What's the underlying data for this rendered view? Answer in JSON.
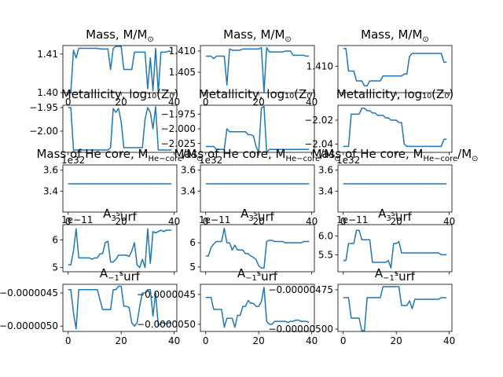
{
  "figure": {
    "line_color": "#1f77b4",
    "x_ticks": [
      0,
      20,
      40
    ],
    "x_tick_labels": [
      "0",
      "20",
      "40"
    ]
  },
  "chart_data": [
    {
      "type": "line",
      "title": "Mass, M/M_⊙",
      "xlim": [
        -2,
        41
      ],
      "ylim": [
        1.4,
        1.4122
      ],
      "y_ticks": [
        1.4,
        1.41
      ],
      "y_tick_labels": [
        "1.40",
        "1.41"
      ],
      "offset_label": "",
      "x": [
        0,
        1,
        2,
        3,
        4,
        5,
        6,
        7,
        8,
        9,
        10,
        11,
        12,
        13,
        14,
        15,
        16,
        17,
        18,
        19,
        20,
        21,
        22,
        23,
        24,
        25,
        26,
        27,
        28,
        29,
        30,
        31,
        32,
        33,
        34,
        35,
        36,
        37,
        38,
        39
      ],
      "y": [
        1.4,
        1.4,
        1.411,
        1.409,
        1.4115,
        1.4115,
        1.4115,
        1.4115,
        1.4115,
        1.4115,
        1.4115,
        1.4115,
        1.4113,
        1.4113,
        1.4113,
        1.4113,
        1.406,
        1.4115,
        1.412,
        1.412,
        1.412,
        1.406,
        1.406,
        1.406,
        1.406,
        1.4105,
        1.4105,
        1.4105,
        1.4105,
        1.4105,
        1.401,
        1.409,
        1.4005,
        1.4115,
        1.4,
        1.4105,
        1.4105,
        1.4105,
        1.4108,
        1.4105
      ],
      "show_x_labels": true
    },
    {
      "type": "line",
      "title": "Mass, M/M_⊙",
      "xlim": [
        -2,
        41
      ],
      "ylim": [
        1.4002,
        1.4113
      ],
      "y_ticks": [
        1.405,
        1.41
      ],
      "y_tick_labels": [
        "1.405",
        "1.410"
      ],
      "offset_label": "",
      "x": [
        0,
        1,
        2,
        3,
        4,
        5,
        6,
        7,
        8,
        9,
        10,
        11,
        12,
        13,
        14,
        15,
        16,
        17,
        18,
        19,
        20,
        21,
        22,
        23,
        24,
        25,
        26,
        27,
        28,
        29,
        30,
        31,
        32,
        33,
        34,
        35,
        36,
        37,
        38,
        39
      ],
      "y": [
        1.4088,
        1.4088,
        1.4088,
        1.4082,
        1.4088,
        1.4088,
        1.4088,
        1.4088,
        1.402,
        1.4105,
        1.4102,
        1.4102,
        1.4102,
        1.4102,
        1.4105,
        1.4105,
        1.4105,
        1.4105,
        1.4105,
        1.4105,
        1.4105,
        1.4108,
        1.4003,
        1.4108,
        1.4098,
        1.4098,
        1.4098,
        1.4098,
        1.4098,
        1.4098,
        1.41,
        1.41,
        1.41,
        1.409,
        1.409,
        1.409,
        1.409,
        1.409,
        1.4088,
        1.4088
      ],
      "show_x_labels": true
    },
    {
      "type": "line",
      "title": "Mass, M/M_⊙",
      "xlim": [
        -2,
        41
      ],
      "ylim": [
        1.4073,
        1.4121
      ],
      "y_ticks": [
        1.41
      ],
      "y_tick_labels": [
        "1.410"
      ],
      "offset_label": "",
      "x": [
        0,
        1,
        2,
        3,
        4,
        5,
        6,
        7,
        8,
        9,
        10,
        11,
        12,
        13,
        14,
        15,
        16,
        17,
        18,
        19,
        20,
        21,
        22,
        23,
        24,
        25,
        26,
        27,
        28,
        29,
        30,
        31,
        32,
        33,
        34,
        35,
        36,
        37,
        38,
        39
      ],
      "y": [
        1.4118,
        1.4118,
        1.4095,
        1.4095,
        1.4095,
        1.4085,
        1.4085,
        1.4085,
        1.408,
        1.408,
        1.4085,
        1.4085,
        1.4085,
        1.4085,
        1.4085,
        1.409,
        1.409,
        1.409,
        1.409,
        1.409,
        1.409,
        1.409,
        1.409,
        1.4092,
        1.4092,
        1.411,
        1.4113,
        1.4113,
        1.4113,
        1.4113,
        1.4113,
        1.4113,
        1.4113,
        1.4113,
        1.4113,
        1.4113,
        1.4113,
        1.4113,
        1.4104,
        1.4104
      ],
      "show_x_labels": false
    },
    {
      "type": "line",
      "title": "Metallicity, log₁₀(Z₀)",
      "xlim": [
        -2,
        41
      ],
      "ylim": [
        -2.045,
        -1.945
      ],
      "y_ticks": [
        -2.0,
        -1.95
      ],
      "y_tick_labels": [
        "−2.00",
        "−1.95"
      ],
      "offset_label": "",
      "x": [
        0,
        1,
        2,
        3,
        4,
        5,
        6,
        7,
        8,
        9,
        10,
        11,
        12,
        13,
        14,
        15,
        16,
        17,
        18,
        19,
        20,
        21,
        22,
        23,
        24,
        25,
        26,
        27,
        28,
        29,
        30,
        31,
        32,
        33,
        34,
        35,
        36,
        37,
        38,
        39
      ],
      "y": [
        -1.95,
        -1.95,
        -2.04,
        -2.04,
        -2.04,
        -2.04,
        -2.04,
        -2.04,
        -2.04,
        -2.04,
        -2.04,
        -2.04,
        -2.04,
        -2.04,
        -2.04,
        -2.04,
        -2.035,
        -1.952,
        -1.96,
        -1.952,
        -1.98,
        -2.035,
        -2.035,
        -2.035,
        -2.035,
        -2.035,
        -2.035,
        -2.035,
        -2.035,
        -1.975,
        -1.95,
        -1.96,
        -1.995,
        -1.948,
        -2.04,
        -2.04,
        -2.04,
        -2.04,
        -2.04,
        -2.04
      ],
      "show_x_labels": false
    },
    {
      "type": "line",
      "title": "Metallicity, log₁₀(Z₀)",
      "xlim": [
        -2,
        41
      ],
      "ylim": [
        -2.04,
        -1.96
      ],
      "y_ticks": [
        -2.025,
        -2.0,
        -1.975
      ],
      "y_tick_labels": [
        "−2.025",
        "−2.000",
        "−1.975"
      ],
      "offset_label": "",
      "x": [
        0,
        1,
        2,
        3,
        4,
        5,
        6,
        7,
        8,
        9,
        10,
        11,
        12,
        13,
        14,
        15,
        16,
        17,
        18,
        19,
        20,
        21,
        22,
        23,
        24,
        25,
        26,
        27,
        28,
        29,
        30,
        31,
        32,
        33,
        34,
        35,
        36,
        37,
        38,
        39
      ],
      "y": [
        -2.03,
        -2.03,
        -2.03,
        -2.03,
        -2.035,
        -2.035,
        -2.035,
        -2.035,
        -2.0,
        -2.005,
        -2.005,
        -2.005,
        -2.005,
        -2.005,
        -2.005,
        -2.005,
        -2.01,
        -2.01,
        -2.012,
        -2.03,
        -2.04,
        -1.965,
        -1.962,
        -2.04,
        -2.035,
        -2.035,
        -2.035,
        -2.035,
        -2.035,
        -2.035,
        -2.035,
        -2.035,
        -2.035,
        -2.035,
        -2.035,
        -2.035,
        -2.035,
        -2.035,
        -2.035,
        -2.035
      ],
      "show_x_labels": false
    },
    {
      "type": "line",
      "title": "Metallicity, log₁₀(Z₀)",
      "xlim": [
        -2,
        41
      ],
      "ylim": [
        -2.047,
        -2.0075
      ],
      "y_ticks": [
        -2.04,
        -2.02
      ],
      "y_tick_labels": [
        "−2.04",
        "−2.02"
      ],
      "offset_label": "",
      "x": [
        0,
        1,
        2,
        3,
        4,
        5,
        6,
        7,
        8,
        9,
        10,
        11,
        12,
        13,
        14,
        15,
        16,
        17,
        18,
        19,
        20,
        21,
        22,
        23,
        24,
        25,
        26,
        27,
        28,
        29,
        30,
        31,
        32,
        33,
        34,
        35,
        36,
        37,
        38,
        39
      ],
      "y": [
        -2.042,
        -2.042,
        -2.042,
        -2.015,
        -2.015,
        -2.015,
        -2.015,
        -2.01,
        -2.01,
        -2.012,
        -2.012,
        -2.014,
        -2.014,
        -2.016,
        -2.016,
        -2.016,
        -2.018,
        -2.018,
        -2.02,
        -2.02,
        -2.02,
        -2.022,
        -2.022,
        -2.04,
        -2.042,
        -2.042,
        -2.042,
        -2.042,
        -2.042,
        -2.042,
        -2.042,
        -2.042,
        -2.042,
        -2.042,
        -2.042,
        -2.042,
        -2.042,
        -2.042,
        -2.036,
        -2.036
      ],
      "show_x_labels": false
    },
    {
      "type": "line",
      "title": "Mass of He core, M_{He−core}/M_⊙",
      "xlim": [
        -2,
        41
      ],
      "ylim": [
        3.2,
        3.65
      ],
      "y_ticks": [
        3.4,
        3.6
      ],
      "y_tick_labels": [
        "3.4",
        "3.6"
      ],
      "offset_label": "1e32",
      "x": [
        0,
        39
      ],
      "y": [
        3.47,
        3.47
      ],
      "show_x_labels": true
    },
    {
      "type": "line",
      "title": "Mass of He core, M_{He−core}/M_⊙",
      "xlim": [
        -2,
        41
      ],
      "ylim": [
        3.2,
        3.65
      ],
      "y_ticks": [
        3.4,
        3.6
      ],
      "y_tick_labels": [
        "3.4",
        "3.6"
      ],
      "offset_label": "1e32",
      "x": [
        0,
        39
      ],
      "y": [
        3.47,
        3.47
      ],
      "show_x_labels": true
    },
    {
      "type": "line",
      "title": "Mass of He core, M_{He−core}/M_⊙",
      "xlim": [
        -2,
        41
      ],
      "ylim": [
        3.2,
        3.65
      ],
      "y_ticks": [
        3.4,
        3.6
      ],
      "y_tick_labels": [
        "3.4",
        "3.6"
      ],
      "offset_label": "1e32",
      "x": [
        0,
        39
      ],
      "y": [
        3.47,
        3.47
      ],
      "show_x_labels": true
    },
    {
      "type": "line",
      "title": "A_3^surf",
      "xlim": [
        -2,
        41
      ],
      "ylim": [
        4.85,
        6.55
      ],
      "y_ticks": [
        5,
        6
      ],
      "y_tick_labels": [
        "5",
        "6"
      ],
      "offset_label": "1e−11",
      "x": [
        0,
        1,
        2,
        3,
        4,
        5,
        6,
        7,
        8,
        9,
        10,
        11,
        12,
        13,
        14,
        15,
        16,
        17,
        18,
        19,
        20,
        21,
        22,
        23,
        24,
        25,
        26,
        27,
        28,
        29,
        30,
        31,
        32,
        33,
        34,
        35,
        36,
        37,
        38,
        39
      ],
      "y": [
        5.1,
        5.1,
        5.6,
        6.4,
        5.35,
        5.35,
        5.35,
        5.35,
        5.35,
        5.3,
        5.35,
        5.35,
        5.5,
        5.5,
        5.9,
        5.95,
        5.2,
        5.2,
        5.3,
        5.45,
        5.45,
        5.45,
        5.45,
        5.4,
        5.6,
        5.9,
        5.1,
        5.0,
        5.3,
        5.0,
        6.4,
        5.15,
        6.3,
        6.25,
        6.3,
        6.35,
        6.3,
        6.35,
        6.35,
        6.35
      ],
      "show_x_labels": false
    },
    {
      "type": "line",
      "title": "A_3^surf",
      "xlim": [
        -2,
        41
      ],
      "ylim": [
        4.8,
        6.75
      ],
      "y_ticks": [
        5,
        6
      ],
      "y_tick_labels": [
        "5",
        "6"
      ],
      "offset_label": "1e−11",
      "x": [
        0,
        1,
        2,
        3,
        4,
        5,
        6,
        7,
        8,
        9,
        10,
        11,
        12,
        13,
        14,
        15,
        16,
        17,
        18,
        19,
        20,
        21,
        22,
        23,
        24,
        25,
        26,
        27,
        28,
        29,
        30,
        31,
        32,
        33,
        34,
        35,
        36,
        37,
        38,
        39
      ],
      "y": [
        5.45,
        5.45,
        5.8,
        5.95,
        6.05,
        6.05,
        6.05,
        6.6,
        6.0,
        6.0,
        5.7,
        5.9,
        5.7,
        5.7,
        5.7,
        5.55,
        5.55,
        5.45,
        5.4,
        5.3,
        5.05,
        4.95,
        4.95,
        6.05,
        6.1,
        6.1,
        6.05,
        6.05,
        6.05,
        6.05,
        6.0,
        6.0,
        6.0,
        6.0,
        6.0,
        6.0,
        6.0,
        6.05,
        6.05,
        6.05
      ],
      "show_x_labels": false
    },
    {
      "type": "line",
      "title": "A_3^surf",
      "xlim": [
        -2,
        41
      ],
      "ylim": [
        5.05,
        6.3
      ],
      "y_ticks": [
        5.5,
        6.0
      ],
      "y_tick_labels": [
        "5.5",
        "6.0"
      ],
      "offset_label": "1e−11",
      "x": [
        0,
        1,
        2,
        3,
        4,
        5,
        6,
        7,
        8,
        9,
        10,
        11,
        12,
        13,
        14,
        15,
        16,
        17,
        18,
        19,
        20,
        21,
        22,
        23,
        24,
        25,
        26,
        27,
        28,
        29,
        30,
        31,
        32,
        33,
        34,
        35,
        36,
        37,
        38,
        39
      ],
      "y": [
        5.35,
        5.35,
        5.8,
        5.8,
        5.8,
        6.15,
        6.15,
        5.9,
        5.9,
        5.9,
        5.9,
        5.3,
        5.3,
        5.3,
        5.3,
        5.3,
        5.3,
        5.35,
        5.15,
        5.8,
        5.8,
        5.85,
        5.55,
        5.55,
        5.55,
        5.55,
        5.55,
        5.55,
        5.55,
        5.55,
        5.55,
        5.55,
        5.55,
        5.55,
        5.55,
        5.55,
        5.55,
        5.5,
        5.5,
        5.5
      ],
      "show_x_labels": false
    },
    {
      "type": "line",
      "title": "A_{−1}^surf",
      "xlim": [
        -2,
        41
      ],
      "ylim": [
        -5.08e-06,
        -4.37e-06
      ],
      "y_ticks": [
        -5e-06,
        -4.5e-06
      ],
      "y_tick_labels": [
        "−0.0000050",
        "−0.0000045"
      ],
      "offset_label": "",
      "x": [
        0,
        1,
        2,
        3,
        4,
        5,
        6,
        7,
        8,
        9,
        10,
        11,
        12,
        13,
        14,
        15,
        16,
        17,
        18,
        19,
        20,
        21,
        22,
        23,
        24,
        25,
        26,
        27,
        28,
        29,
        30,
        31,
        32,
        33,
        34,
        35,
        36,
        37,
        38,
        39
      ],
      "y": [
        -4.45e-06,
        -4.45e-06,
        -4.8e-06,
        -5.04e-06,
        -4.45e-06,
        -4.45e-06,
        -4.45e-06,
        -4.45e-06,
        -4.45e-06,
        -4.45e-06,
        -4.45e-06,
        -4.45e-06,
        -4.6e-06,
        -4.75e-06,
        -4.75e-06,
        -4.75e-06,
        -4.75e-06,
        -4.45e-06,
        -4.45e-06,
        -4.4e-06,
        -4.4e-06,
        -4.7e-06,
        -4.7e-06,
        -4.72e-06,
        -4.95e-06,
        -5e-06,
        -4.95e-06,
        -4.7e-06,
        -4.5e-06,
        -4.5e-06,
        -4.45e-06,
        -4.45e-06,
        -4.85e-06,
        -4.5e-06,
        -5e-06,
        -4.95e-06,
        -4.95e-06,
        -4.97e-06,
        -4.95e-06,
        -4.95e-06
      ],
      "show_x_labels": true
    },
    {
      "type": "line",
      "title": "A_{−1}^surf",
      "xlim": [
        -2,
        41
      ],
      "ylim": [
        -5.12e-06,
        -4.33e-06
      ],
      "y_ticks": [
        -5e-06,
        -4.5e-06
      ],
      "y_tick_labels": [
        "−0.0000050",
        "−0.0000045"
      ],
      "offset_label": "",
      "x": [
        0,
        1,
        2,
        3,
        4,
        5,
        6,
        7,
        8,
        9,
        10,
        11,
        12,
        13,
        14,
        15,
        16,
        17,
        18,
        19,
        20,
        21,
        22,
        23,
        24,
        25,
        26,
        27,
        28,
        29,
        30,
        31,
        32,
        33,
        34,
        35,
        36,
        37,
        38,
        39
      ],
      "y": [
        -4.55e-06,
        -4.55e-06,
        -4.55e-06,
        -4.75e-06,
        -4.75e-06,
        -4.75e-06,
        -4.75e-06,
        -5.05e-06,
        -4.9e-06,
        -4.9e-06,
        -4.9e-06,
        -5.05e-06,
        -4.85e-06,
        -4.85e-06,
        -4.7e-06,
        -4.7e-06,
        -4.6e-06,
        -4.65e-06,
        -4.65e-06,
        -4.7e-06,
        -4.7e-06,
        -4.62e-06,
        -4.38e-06,
        -4.95e-06,
        -5e-06,
        -5e-06,
        -4.95e-06,
        -4.95e-06,
        -4.95e-06,
        -4.95e-06,
        -4.95e-06,
        -4.97e-06,
        -4.95e-06,
        -4.95e-06,
        -4.93e-06,
        -4.93e-06,
        -4.95e-06,
        -4.95e-06,
        -4.95e-06,
        -4.97e-06
      ],
      "show_x_labels": true
    },
    {
      "type": "line",
      "title": "A_{−1}^surf",
      "xlim": [
        -2,
        41
      ],
      "ylim": [
        -5.015e-06,
        -4.715e-06
      ],
      "y_ticks": [
        -5e-06,
        -4.75e-06
      ],
      "y_tick_labels": [
        "−0.00000500",
        "−0.00000475"
      ],
      "offset_label": "",
      "x": [
        0,
        1,
        2,
        3,
        4,
        5,
        6,
        7,
        8,
        9,
        10,
        11,
        12,
        13,
        14,
        15,
        16,
        17,
        18,
        19,
        20,
        21,
        22,
        23,
        24,
        25,
        26,
        27,
        28,
        29,
        30,
        31,
        32,
        33,
        34,
        35,
        36,
        37,
        38,
        39
      ],
      "y": [
        -4.8e-06,
        -4.8e-06,
        -4.8e-06,
        -4.93e-06,
        -4.93e-06,
        -4.93e-06,
        -4.93e-06,
        -5.01e-06,
        -5.01e-06,
        -4.8e-06,
        -4.8e-06,
        -4.8e-06,
        -4.8e-06,
        -4.8e-06,
        -4.8e-06,
        -4.73e-06,
        -4.73e-06,
        -4.73e-06,
        -4.73e-06,
        -4.73e-06,
        -4.73e-06,
        -4.73e-06,
        -4.85e-06,
        -4.85e-06,
        -4.85e-06,
        -4.82e-06,
        -4.87e-06,
        -4.81e-06,
        -4.81e-06,
        -4.81e-06,
        -4.81e-06,
        -4.81e-06,
        -4.81e-06,
        -4.81e-06,
        -4.81e-06,
        -4.81e-06,
        -4.81e-06,
        -4.8e-06,
        -4.8e-06,
        -4.8e-06
      ],
      "show_x_labels": true
    }
  ]
}
